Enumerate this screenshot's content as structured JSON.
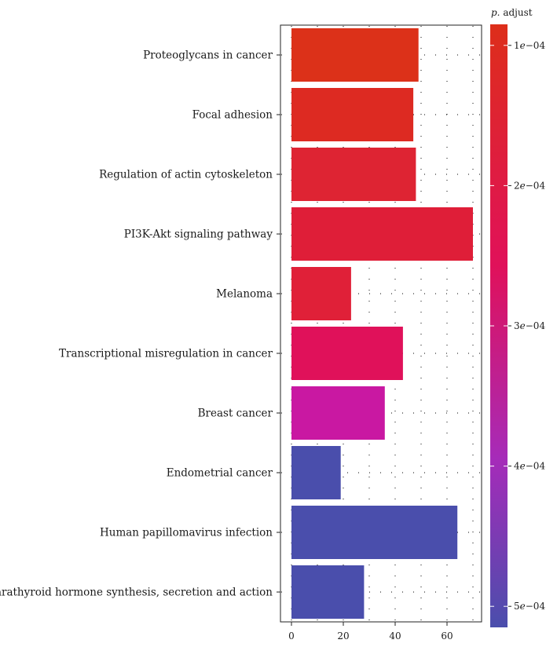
{
  "chart_data": {
    "type": "bar",
    "orientation": "horizontal",
    "categories": [
      "Proteoglycans in cancer",
      "Focal adhesion",
      "Regulation of actin cytoskeleton",
      "PI3K-Akt signaling pathway",
      "Melanoma",
      "Transcriptional misregulation in cancer",
      "Breast cancer",
      "Endometrial cancer",
      "Human papillomavirus infection",
      "Parathyroid hormone synthesis, secretion and action"
    ],
    "values": [
      49,
      47,
      48,
      70,
      23,
      43,
      36,
      19,
      64,
      28
    ],
    "p_adjust": [
      0.00011,
      0.00016,
      0.0002,
      0.00022,
      0.00021,
      0.00027,
      0.00033,
      0.00049,
      0.00049,
      0.00049
    ],
    "bar_colors": [
      "#dc3119",
      "#dd2a22",
      "#de2433",
      "#df1e38",
      "#e02038",
      "#e0115a",
      "#c918a2",
      "#4a4eac",
      "#4a4eac",
      "#4a4eac"
    ],
    "x_ticks": [
      0,
      20,
      40,
      60
    ],
    "xlim": [
      0,
      72
    ],
    "xlabel": "",
    "ylabel": "",
    "grid": true,
    "legend": {
      "title_italic": "p.",
      "title_rest": " adjust",
      "placement": "right",
      "colors": [
        "#dd2e1a",
        "#e0115a",
        "#a62bb9",
        "#4a4eac"
      ],
      "ticks": [
        {
          "value": 0.0001,
          "mantissa": "1",
          "exp": "−04"
        },
        {
          "value": 0.0002,
          "mantissa": "2",
          "exp": "−04"
        },
        {
          "value": 0.0003,
          "mantissa": "3",
          "exp": "−04"
        },
        {
          "value": 0.0004,
          "mantissa": "4",
          "exp": "−04"
        },
        {
          "value": 0.0005,
          "mantissa": "5",
          "exp": "−04"
        }
      ],
      "range": [
        8.5e-05,
        0.000515
      ]
    }
  }
}
